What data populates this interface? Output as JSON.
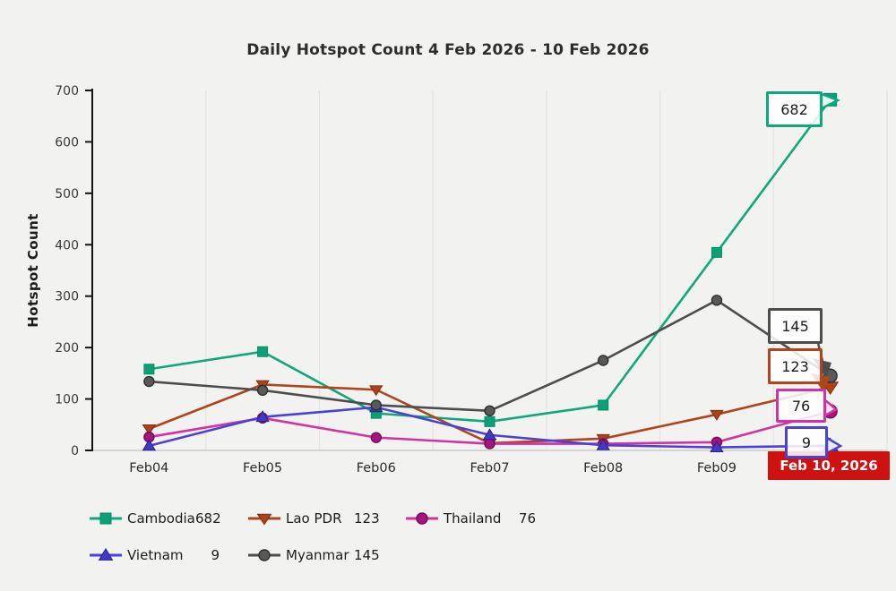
{
  "page": {
    "background": "#f2f2f1"
  },
  "chart_data": {
    "type": "line",
    "title": "Daily Hotspot Count 4 Feb 2026 - 10 Feb 2026",
    "ylabel": "Hotspot Count",
    "xlabel": "",
    "ylim": [
      0,
      700
    ],
    "yticks": [
      0,
      100,
      200,
      300,
      400,
      500,
      600,
      700
    ],
    "categories": [
      "Feb04",
      "Feb05",
      "Feb06",
      "Feb07",
      "Feb08",
      "Feb09",
      "Feb 10, 2026"
    ],
    "grid": "vertical-only",
    "legend_position": "bottom",
    "selected_date": "Feb 10, 2026",
    "selected_date_bg": "#ce1212",
    "series": [
      {
        "name": "Cambodia",
        "marker": "square",
        "color": "#10a77b",
        "marker_fill": "#0aa176",
        "marker_edge": "#078a63",
        "values": [
          158,
          192,
          72,
          56,
          88,
          385,
          682
        ],
        "last_value": 682
      },
      {
        "name": "Lao PDR",
        "marker": "triangle-down",
        "color": "#b0451c",
        "marker_fill": "#ad431a",
        "marker_edge": "#7d2f12",
        "values": [
          42,
          128,
          118,
          14,
          23,
          70,
          123
        ],
        "last_value": 123
      },
      {
        "name": "Thailand",
        "marker": "circle",
        "color": "#d233a4",
        "marker_fill": "#a8137f",
        "marker_edge": "#6e0d56",
        "values": [
          26,
          63,
          25,
          13,
          13,
          16,
          76
        ],
        "last_value": 76
      },
      {
        "name": "Vietnam",
        "marker": "triangle-up",
        "color": "#4b42cf",
        "marker_fill": "#4238c9",
        "marker_edge": "#27227f",
        "values": [
          9,
          65,
          84,
          30,
          10,
          6,
          9
        ],
        "last_value": 9
      },
      {
        "name": "Myanmar",
        "marker": "circle",
        "color": "#4d4d4d",
        "marker_fill": "#595959",
        "marker_edge": "#2e2e2e",
        "values": [
          134,
          117,
          88,
          77,
          175,
          292,
          145
        ],
        "last_value": 145
      }
    ]
  }
}
